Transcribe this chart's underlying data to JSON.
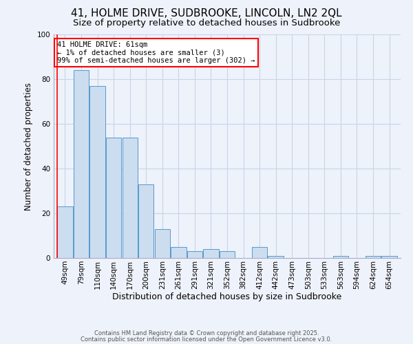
{
  "title": "41, HOLME DRIVE, SUDBROOKE, LINCOLN, LN2 2QL",
  "subtitle": "Size of property relative to detached houses in Sudbrooke",
  "xlabel": "Distribution of detached houses by size in Sudbrooke",
  "ylabel": "Number of detached properties",
  "categories": [
    "49sqm",
    "79sqm",
    "110sqm",
    "140sqm",
    "170sqm",
    "200sqm",
    "231sqm",
    "261sqm",
    "291sqm",
    "321sqm",
    "352sqm",
    "382sqm",
    "412sqm",
    "442sqm",
    "473sqm",
    "503sqm",
    "533sqm",
    "563sqm",
    "594sqm",
    "624sqm",
    "654sqm"
  ],
  "values": [
    23,
    84,
    77,
    54,
    54,
    33,
    13,
    5,
    3,
    4,
    3,
    0,
    5,
    1,
    0,
    0,
    0,
    1,
    0,
    1,
    1
  ],
  "bar_color": "#ccddf0",
  "bar_edge_color": "#5599cc",
  "background_color": "#eef2fa",
  "grid_color": "#c8d4e8",
  "annotation_box_text": "41 HOLME DRIVE: 61sqm\n← 1% of detached houses are smaller (3)\n99% of semi-detached houses are larger (302) →",
  "annotation_box_edge_color": "red",
  "marker_line_color": "red",
  "ylim": [
    0,
    100
  ],
  "footer_line1": "Contains HM Land Registry data © Crown copyright and database right 2025.",
  "footer_line2": "Contains public sector information licensed under the Open Government Licence v3.0.",
  "title_fontsize": 11,
  "subtitle_fontsize": 9.5,
  "xlabel_fontsize": 9,
  "ylabel_fontsize": 8.5,
  "tick_fontsize": 7.5,
  "annotation_fontsize": 7.5,
  "footer_fontsize": 6
}
